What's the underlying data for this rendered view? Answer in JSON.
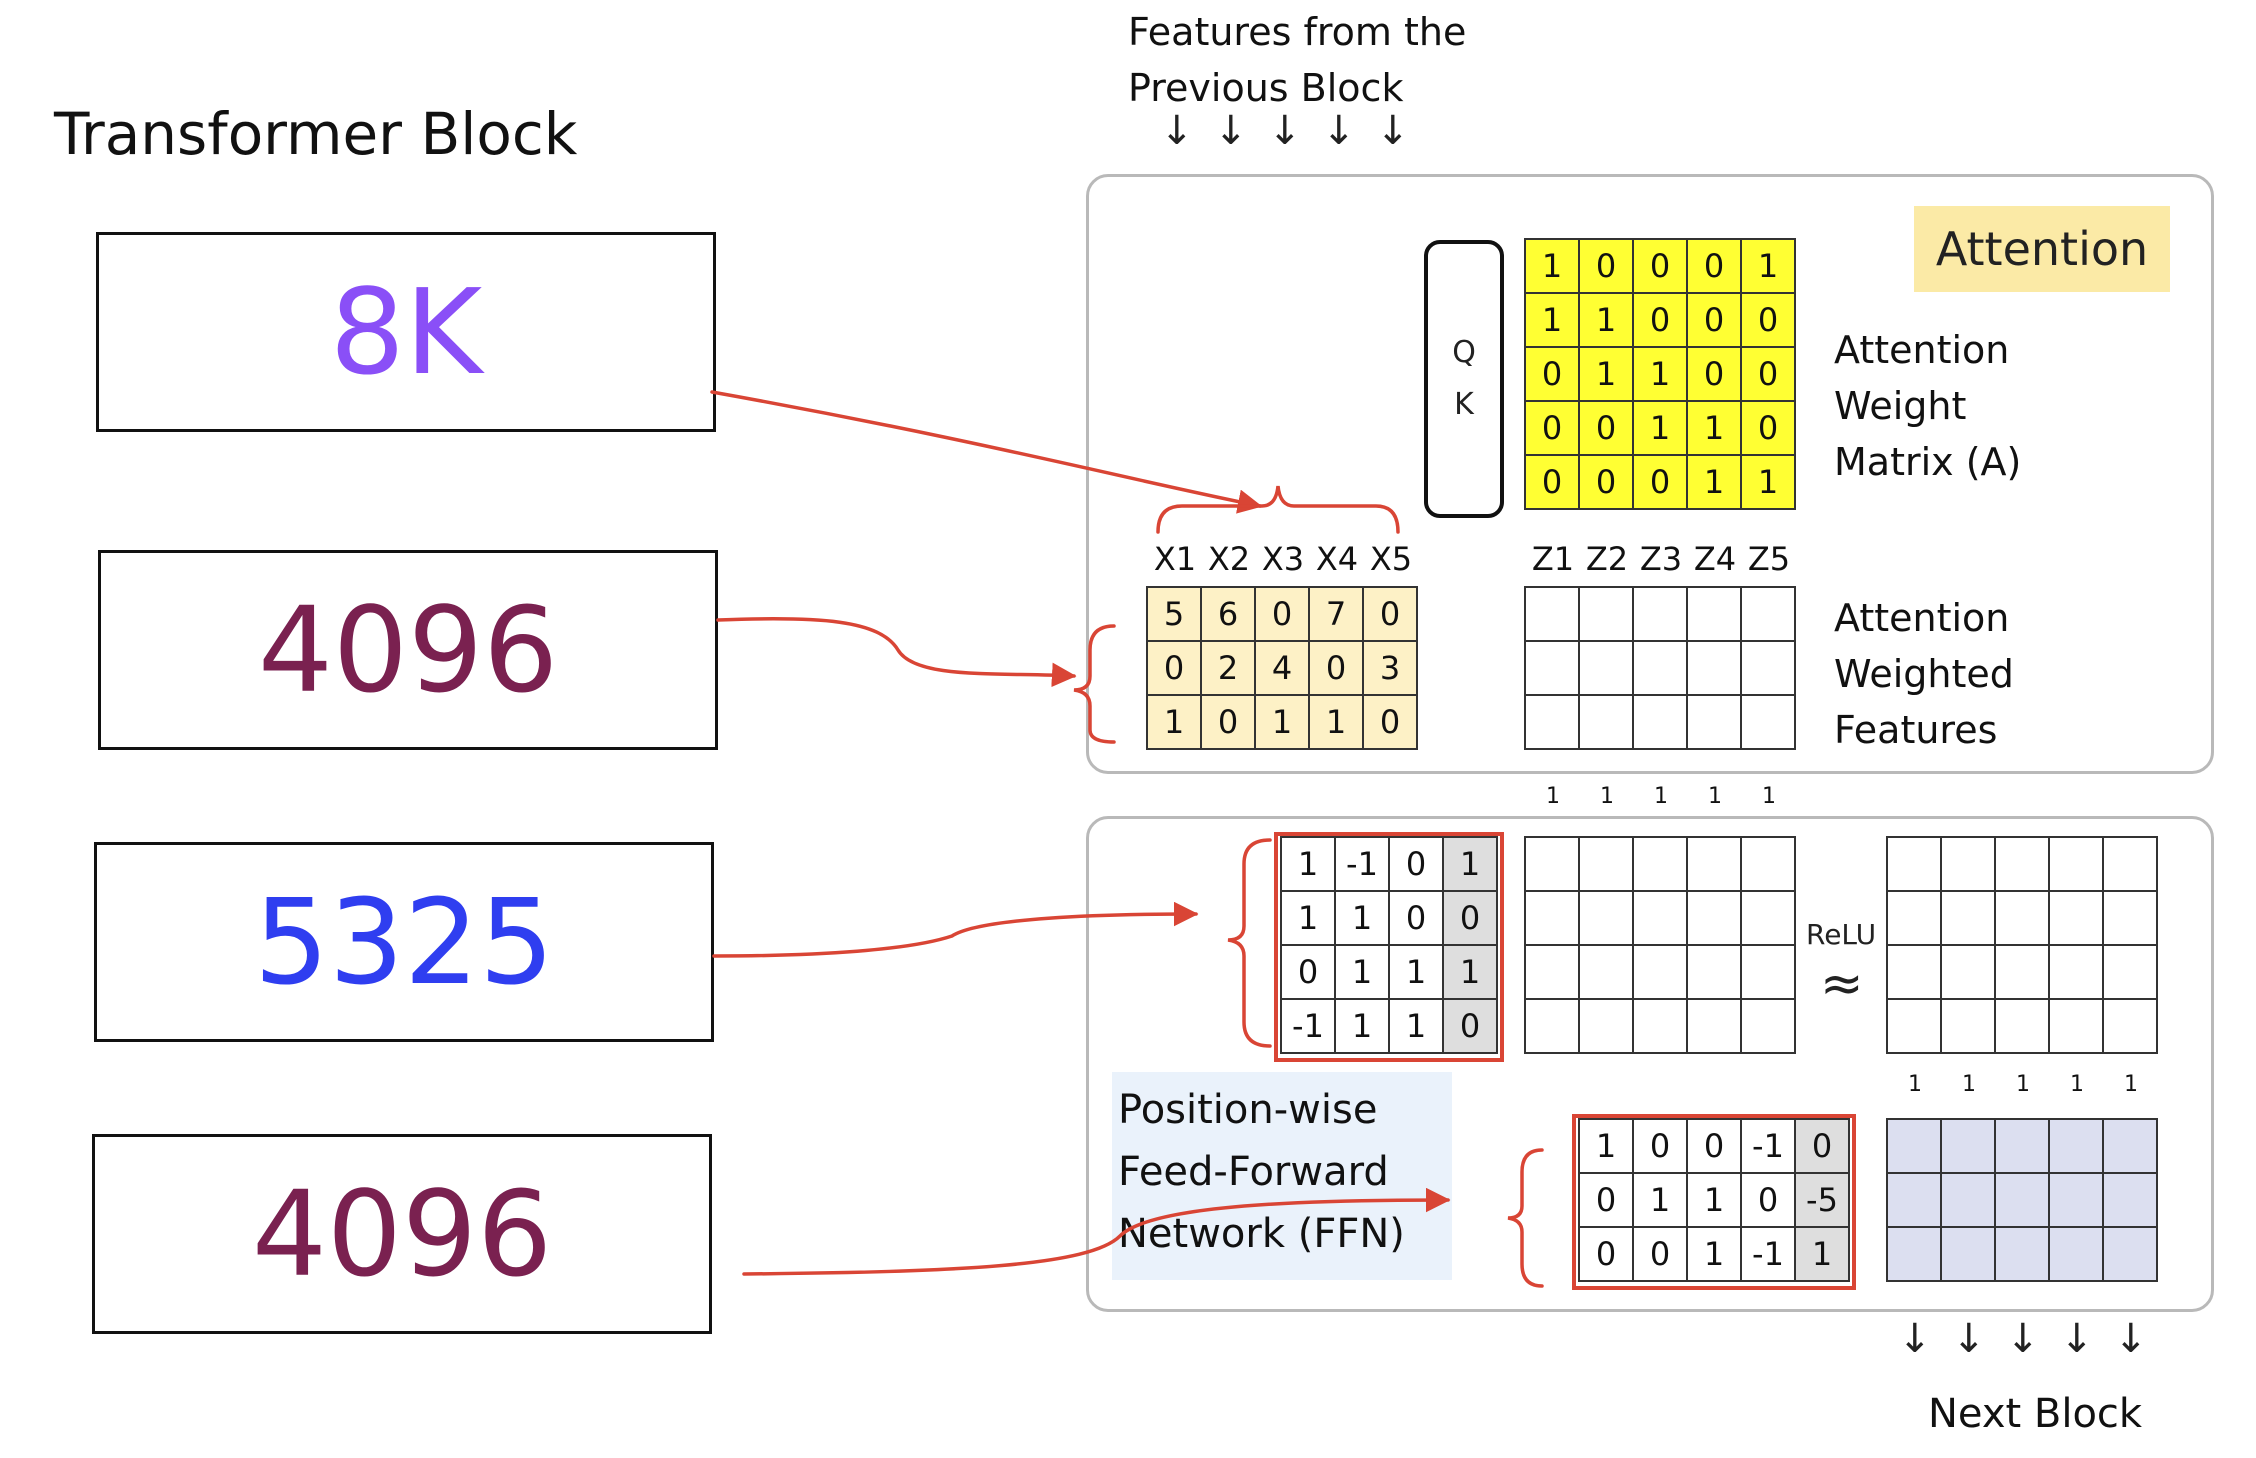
{
  "title": "Transformer Block",
  "left_values": [
    {
      "text": "8K",
      "color": "#8a4ff7"
    },
    {
      "text": "4096",
      "color": "#7a2150"
    },
    {
      "text": "5325",
      "color": "#2f3ef0"
    },
    {
      "text": "4096",
      "color": "#7a2150"
    }
  ],
  "input_label": [
    "Features from the",
    "Previous Block"
  ],
  "output_label": "Next Block",
  "attention": {
    "badge": "Attention",
    "qk": [
      "Q",
      "K"
    ],
    "matrix_label": [
      "Attention",
      "Weight",
      "Matrix (A)"
    ],
    "features_label": [
      "Attention",
      "Weighted",
      "Features"
    ],
    "weight_matrix": [
      [
        "1",
        "0",
        "0",
        "0",
        "1"
      ],
      [
        "1",
        "1",
        "0",
        "0",
        "0"
      ],
      [
        "0",
        "1",
        "1",
        "0",
        "0"
      ],
      [
        "0",
        "0",
        "1",
        "1",
        "0"
      ],
      [
        "0",
        "0",
        "0",
        "1",
        "1"
      ]
    ],
    "x_headers": [
      "X1",
      "X2",
      "X3",
      "X4",
      "X5"
    ],
    "z_headers": [
      "Z1",
      "Z2",
      "Z3",
      "Z4",
      "Z5"
    ],
    "x_matrix": [
      [
        "5",
        "6",
        "0",
        "7",
        "0"
      ],
      [
        "0",
        "2",
        "4",
        "0",
        "3"
      ],
      [
        "1",
        "0",
        "1",
        "1",
        "0"
      ]
    ],
    "ones_row": [
      "1",
      "1",
      "1",
      "1",
      "1"
    ]
  },
  "ffn": {
    "label": [
      "Position-wise",
      "Feed-Forward",
      "Network (FFN)"
    ],
    "relu": "ReLU",
    "approx": "≈",
    "w1_matrix": [
      [
        "1",
        "-1",
        "0",
        "1"
      ],
      [
        "1",
        "1",
        "0",
        "0"
      ],
      [
        "0",
        "1",
        "1",
        "1"
      ],
      [
        "-1",
        "1",
        "1",
        "0"
      ]
    ],
    "w2_matrix": [
      [
        "1",
        "0",
        "0",
        "-1",
        "0"
      ],
      [
        "0",
        "1",
        "1",
        "0",
        "-5"
      ],
      [
        "0",
        "0",
        "1",
        "-1",
        "1"
      ]
    ],
    "ones_row": [
      "1",
      "1",
      "1",
      "1",
      "1"
    ]
  },
  "colors": {
    "red": "#d94535",
    "yellow": "#ffff33",
    "cream": "#fdf1c6",
    "badge": "#fbeaa6",
    "ffn_label_bg": "#eaf2fb",
    "bias_col": "#dedede",
    "output_fill": "#dcdff0"
  }
}
